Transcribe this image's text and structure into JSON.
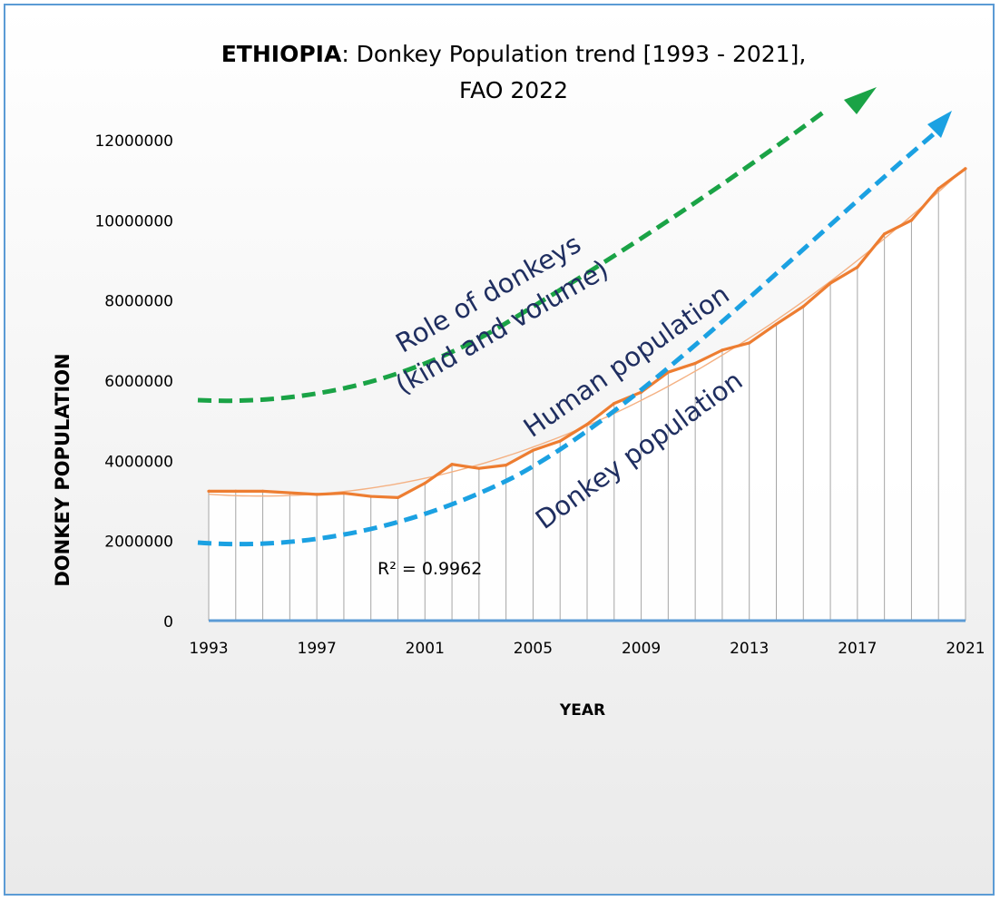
{
  "chart_data": {
    "type": "area",
    "title_bold": "ETHIOPIA",
    "title_rest": ": Donkey Population trend [1993 - 2021],",
    "title_line2": "FAO 2022",
    "xlabel": "YEAR",
    "ylabel": "DONKEY POPULATION",
    "ylim": [
      0,
      12000000
    ],
    "y_ticks": [
      "0",
      "2000000",
      "4000000",
      "6000000",
      "8000000",
      "10000000",
      "12000000"
    ],
    "y_tick_values": [
      0,
      2000000,
      4000000,
      6000000,
      8000000,
      10000000,
      12000000
    ],
    "x_ticks": [
      "1993",
      "1997",
      "2001",
      "2005",
      "2009",
      "2013",
      "2017",
      "2021"
    ],
    "x_tick_values": [
      1993,
      1997,
      2001,
      2005,
      2009,
      2013,
      2017,
      2021
    ],
    "x": [
      1993,
      1994,
      1995,
      1996,
      1997,
      1998,
      1999,
      2000,
      2001,
      2002,
      2003,
      2004,
      2005,
      2006,
      2007,
      2008,
      2009,
      2010,
      2011,
      2012,
      2013,
      2014,
      2015,
      2016,
      2017,
      2018,
      2019,
      2020,
      2021
    ],
    "series": [
      {
        "values": [
          3230000,
          3230000,
          3230000,
          3190000,
          3150000,
          3180000,
          3100000,
          3070000,
          3430000,
          3900000,
          3800000,
          3880000,
          4250000,
          4480000,
          4900000,
          5420000,
          5700000,
          6200000,
          6420000,
          6750000,
          6930000,
          7400000,
          7840000,
          8420000,
          8820000,
          9650000,
          9990000,
          10780000,
          11280000
        ],
        "color": "#ed7d31"
      }
    ],
    "trendline": {
      "type": "polynomial",
      "r2_label": "R² = 0.9962",
      "color": "#f4b183"
    },
    "annotations": [
      {
        "text_lines": [
          "Role of donkeys",
          "(kind and volume)"
        ],
        "arrow_color": "#1aa346"
      },
      {
        "text_lines": [
          "Human population"
        ],
        "arrow_color": "#1ba1e2"
      },
      {
        "text_lines": [
          "Donkey population"
        ],
        "arrow_color": null
      }
    ],
    "text_color": "#1f2e60",
    "area_fill": "#ffffff",
    "drop_line_color": "#a6a6a6",
    "x_axis_color": "#5b9bd5"
  }
}
